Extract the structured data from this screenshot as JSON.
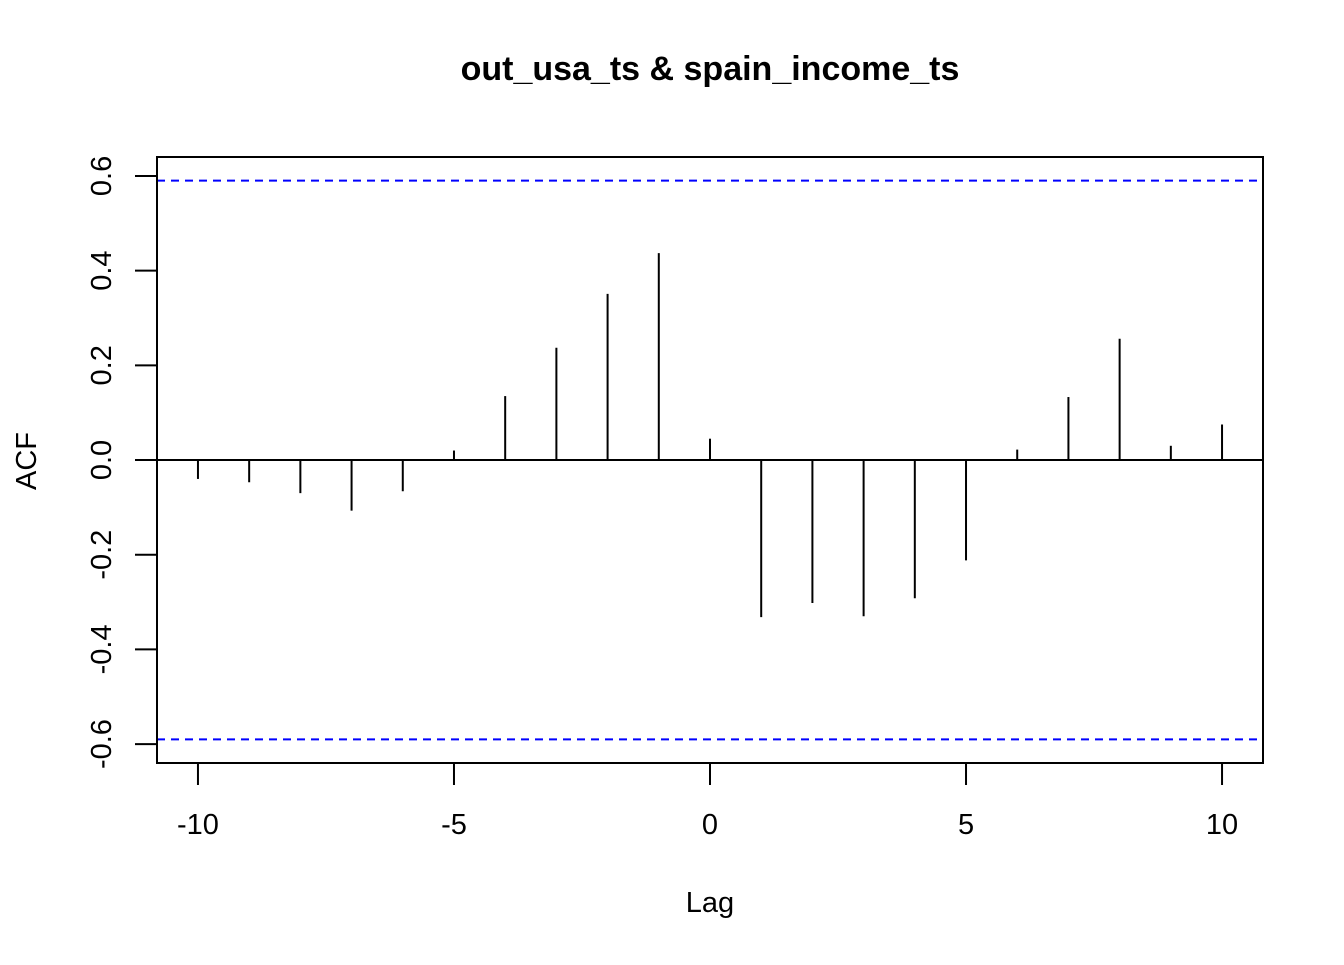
{
  "chart_data": {
    "type": "bar",
    "title": "out_usa_ts & spain_income_ts",
    "xlabel": "Lag",
    "ylabel": "ACF",
    "xlim": [
      -10.8,
      10.8
    ],
    "ylim": [
      -0.64,
      0.64
    ],
    "x_ticks": [
      -10,
      -5,
      0,
      5,
      10
    ],
    "y_ticks": [
      -0.6,
      -0.4,
      -0.2,
      0.0,
      0.2,
      0.4,
      0.6
    ],
    "y_tick_labels": [
      "-0.6",
      "-0.4",
      "-0.2",
      "0.0",
      "0.2",
      "0.4",
      "0.6"
    ],
    "confidence_bounds": [
      0.59,
      -0.59
    ],
    "confidence_color": "#0000ff",
    "bar_color": "#000000",
    "lags": [
      -10,
      -9,
      -8,
      -7,
      -6,
      -5,
      -4,
      -3,
      -2,
      -1,
      0,
      1,
      2,
      3,
      4,
      5,
      6,
      7,
      8,
      9,
      10
    ],
    "values": [
      -0.04,
      -0.047,
      -0.07,
      -0.107,
      -0.066,
      0.02,
      0.135,
      0.237,
      0.351,
      0.437,
      0.045,
      -0.332,
      -0.302,
      -0.33,
      -0.292,
      -0.212,
      0.022,
      0.133,
      0.256,
      0.03,
      0.075
    ],
    "grid": false,
    "legend": "none"
  }
}
